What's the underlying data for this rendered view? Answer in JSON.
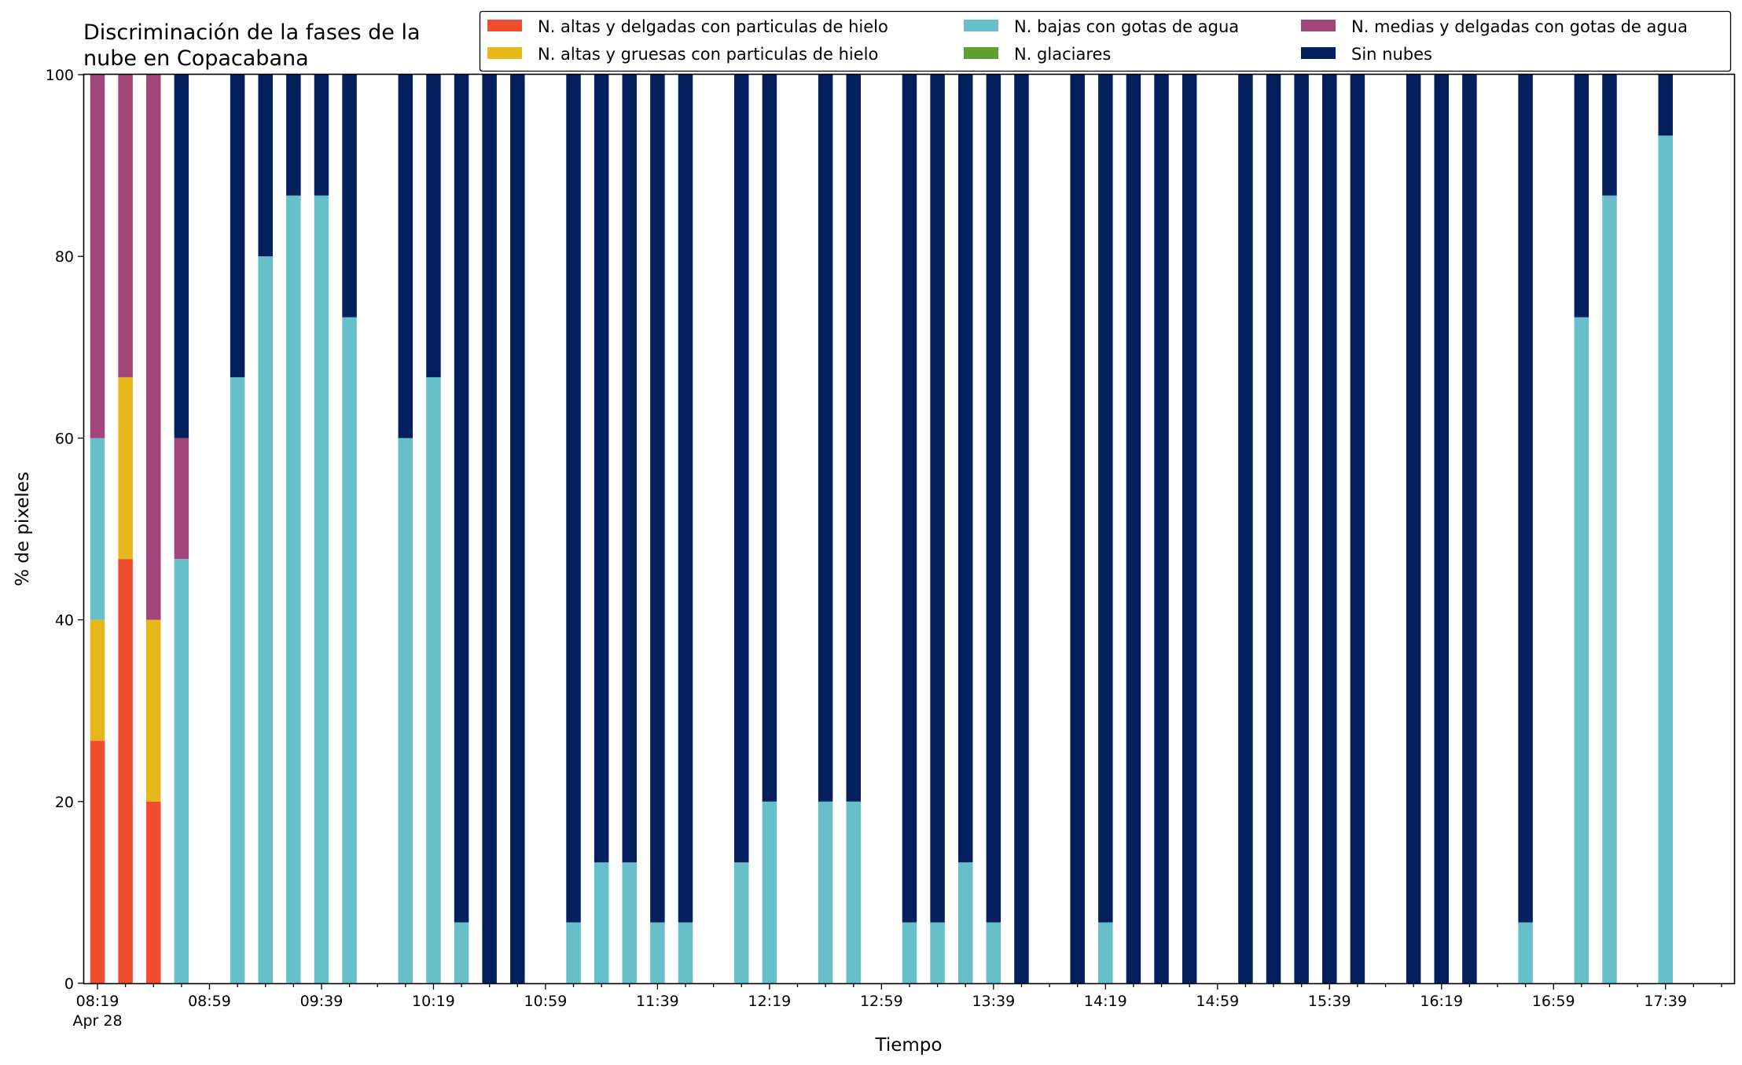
{
  "chart_data": {
    "type": "bar",
    "stacked": true,
    "title_lines": [
      "Discriminación de la fases de la",
      "nube en Copacabana"
    ],
    "xlabel": "Tiempo",
    "ylabel": "% de pixeles",
    "ylim": [
      0,
      100
    ],
    "yticks": [
      0,
      20,
      40,
      60,
      80,
      100
    ],
    "grid": false,
    "legend_position": "top-right",
    "x_start": "08:19",
    "x_step_minutes": 10,
    "x_end": "18:09",
    "major_tick_labels": [
      {
        "time": "08:19",
        "label": "08:19",
        "sublabel": "Apr 28"
      },
      {
        "time": "08:59",
        "label": "08:59"
      },
      {
        "time": "09:39",
        "label": "09:39"
      },
      {
        "time": "10:19",
        "label": "10:19"
      },
      {
        "time": "10:59",
        "label": "10:59"
      },
      {
        "time": "11:39",
        "label": "11:39"
      },
      {
        "time": "12:19",
        "label": "12:19"
      },
      {
        "time": "12:59",
        "label": "12:59"
      },
      {
        "time": "13:39",
        "label": "13:39"
      },
      {
        "time": "14:19",
        "label": "14:19"
      },
      {
        "time": "14:59",
        "label": "14:59"
      },
      {
        "time": "15:39",
        "label": "15:39"
      },
      {
        "time": "16:19",
        "label": "16:19"
      },
      {
        "time": "16:59",
        "label": "16:59"
      },
      {
        "time": "17:39",
        "label": "17:39"
      }
    ],
    "series": [
      {
        "name": "N. altas y delgadas con particulas de hielo",
        "color": "#f04e2f"
      },
      {
        "name": "N. altas y gruesas con particulas de hielo",
        "color": "#e6b81a"
      },
      {
        "name": "N. bajas con gotas de agua",
        "color": "#67bfca"
      },
      {
        "name": "N. glaciares",
        "color": "#5f9e2f"
      },
      {
        "name": "N. medias y delgadas con gotas de agua",
        "color": "#a2467a"
      },
      {
        "name": "Sin nubes",
        "color": "#031f5e"
      }
    ],
    "bars": [
      {
        "time": "08:19",
        "values": [
          26.7,
          13.3,
          20.0,
          0,
          40.0,
          0
        ]
      },
      {
        "time": "08:29",
        "values": [
          46.7,
          20.0,
          0,
          0,
          33.3,
          0
        ]
      },
      {
        "time": "08:39",
        "values": [
          20.0,
          20.0,
          0,
          0,
          60.0,
          0
        ]
      },
      {
        "time": "08:49",
        "values": [
          0,
          0,
          46.7,
          0,
          13.3,
          40.0
        ]
      },
      {
        "time": "09:09",
        "values": [
          0,
          0,
          66.7,
          0,
          0,
          33.3
        ]
      },
      {
        "time": "09:19",
        "values": [
          0,
          0,
          80.0,
          0,
          0,
          20.0
        ]
      },
      {
        "time": "09:29",
        "values": [
          0,
          0,
          86.7,
          0,
          0,
          13.3
        ]
      },
      {
        "time": "09:39",
        "values": [
          0,
          0,
          86.7,
          0,
          0,
          13.3
        ]
      },
      {
        "time": "09:49",
        "values": [
          0,
          0,
          73.3,
          0,
          0,
          26.7
        ]
      },
      {
        "time": "10:09",
        "values": [
          0,
          0,
          60.0,
          0,
          0,
          40.0
        ]
      },
      {
        "time": "10:19",
        "values": [
          0,
          0,
          66.7,
          0,
          0,
          33.3
        ]
      },
      {
        "time": "10:29",
        "values": [
          0,
          0,
          6.7,
          0,
          0,
          93.3
        ]
      },
      {
        "time": "10:39",
        "values": [
          0,
          0,
          0,
          0,
          0,
          100
        ]
      },
      {
        "time": "10:49",
        "values": [
          0,
          0,
          0,
          0,
          0,
          100
        ]
      },
      {
        "time": "11:09",
        "values": [
          0,
          0,
          6.7,
          0,
          0,
          93.3
        ]
      },
      {
        "time": "11:19",
        "values": [
          0,
          0,
          13.3,
          0,
          0,
          86.7
        ]
      },
      {
        "time": "11:29",
        "values": [
          0,
          0,
          13.3,
          0,
          0,
          86.7
        ]
      },
      {
        "time": "11:39",
        "values": [
          0,
          0,
          6.7,
          0,
          0,
          93.3
        ]
      },
      {
        "time": "11:49",
        "values": [
          0,
          0,
          6.7,
          0,
          0,
          93.3
        ]
      },
      {
        "time": "12:09",
        "values": [
          0,
          0,
          13.3,
          0,
          0,
          86.7
        ]
      },
      {
        "time": "12:19",
        "values": [
          0,
          0,
          20.0,
          0,
          0,
          80.0
        ]
      },
      {
        "time": "12:39",
        "values": [
          0,
          0,
          20.0,
          0,
          0,
          80.0
        ]
      },
      {
        "time": "12:49",
        "values": [
          0,
          0,
          20.0,
          0,
          0,
          80.0
        ]
      },
      {
        "time": "13:09",
        "values": [
          0,
          0,
          6.7,
          0,
          0,
          93.3
        ]
      },
      {
        "time": "13:19",
        "values": [
          0,
          0,
          6.7,
          0,
          0,
          93.3
        ]
      },
      {
        "time": "13:29",
        "values": [
          0,
          0,
          13.3,
          0,
          0,
          86.7
        ]
      },
      {
        "time": "13:39",
        "values": [
          0,
          0,
          6.7,
          0,
          0,
          93.3
        ]
      },
      {
        "time": "13:49",
        "values": [
          0,
          0,
          0,
          0,
          0,
          100
        ]
      },
      {
        "time": "14:09",
        "values": [
          0,
          0,
          0,
          0,
          0,
          100
        ]
      },
      {
        "time": "14:19",
        "values": [
          0,
          0,
          6.7,
          0,
          0,
          93.3
        ]
      },
      {
        "time": "14:29",
        "values": [
          0,
          0,
          0,
          0,
          0,
          100
        ]
      },
      {
        "time": "14:39",
        "values": [
          0,
          0,
          0,
          0,
          0,
          100
        ]
      },
      {
        "time": "14:49",
        "values": [
          0,
          0,
          0,
          0,
          0,
          100
        ]
      },
      {
        "time": "15:09",
        "values": [
          0,
          0,
          0,
          0,
          0,
          100
        ]
      },
      {
        "time": "15:19",
        "values": [
          0,
          0,
          0,
          0,
          0,
          100
        ]
      },
      {
        "time": "15:29",
        "values": [
          0,
          0,
          0,
          0,
          0,
          100
        ]
      },
      {
        "time": "15:39",
        "values": [
          0,
          0,
          0,
          0,
          0,
          100
        ]
      },
      {
        "time": "15:49",
        "values": [
          0,
          0,
          0,
          0,
          0,
          100
        ]
      },
      {
        "time": "16:09",
        "values": [
          0,
          0,
          0,
          0,
          0,
          100
        ]
      },
      {
        "time": "16:19",
        "values": [
          0,
          0,
          0,
          0,
          0,
          100
        ]
      },
      {
        "time": "16:29",
        "values": [
          0,
          0,
          0,
          0,
          0,
          100
        ]
      },
      {
        "time": "16:49",
        "values": [
          0,
          0,
          6.7,
          0,
          0,
          93.3
        ]
      },
      {
        "time": "17:09",
        "values": [
          0,
          0,
          73.3,
          0,
          0,
          26.7
        ]
      },
      {
        "time": "17:19",
        "values": [
          0,
          0,
          86.7,
          0,
          0,
          13.3
        ]
      },
      {
        "time": "17:39",
        "values": [
          0,
          0,
          93.3,
          0,
          0,
          6.7
        ]
      }
    ]
  }
}
